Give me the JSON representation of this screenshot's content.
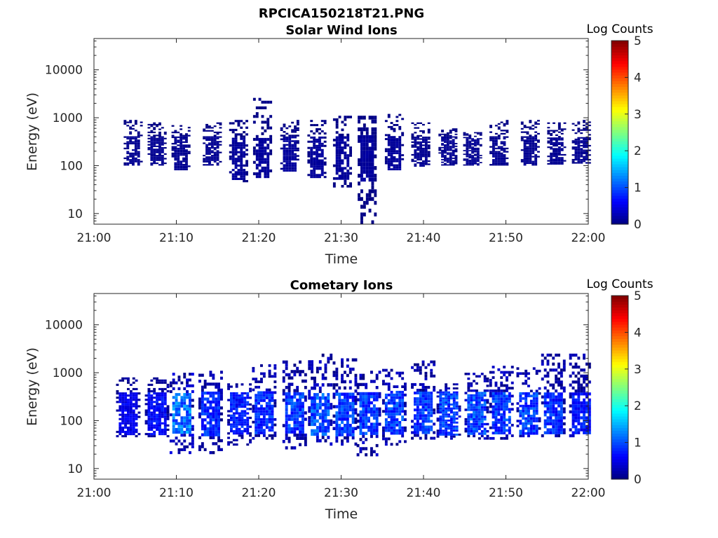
{
  "figure": {
    "title": "RPCICA150218T21.PNG"
  },
  "chart_data": [
    {
      "type": "heatmap",
      "title": "Solar Wind Ions",
      "xlabel": "Time",
      "ylabel": "Energy (eV)",
      "x_ticks": [
        "21:00",
        "21:10",
        "21:20",
        "21:30",
        "21:40",
        "21:50",
        "22:00"
      ],
      "xlim": [
        "21:00",
        "22:00"
      ],
      "y_scale": "log",
      "y_ticks": [
        10,
        100,
        1000,
        10000
      ],
      "y_tick_labels": [
        "10",
        "100",
        "1000",
        "10000"
      ],
      "ylim": [
        6,
        45000
      ],
      "colorbar": {
        "label": "Log Counts",
        "range": [
          0,
          5
        ],
        "ticks": [
          "0",
          "1",
          "2",
          "3",
          "4",
          "5"
        ],
        "colormap": "jet"
      },
      "colors": {
        "dominant": "#00008f",
        "mid": "#0030ff"
      },
      "bursts": [
        {
          "t": "21:04.6",
          "emin": 100,
          "emax": 900,
          "level": 0.1
        },
        {
          "t": "21:07.5",
          "emin": 100,
          "emax": 800,
          "level": 0.1
        },
        {
          "t": "21:10.4",
          "emin": 80,
          "emax": 700,
          "level": 0.1
        },
        {
          "t": "21:14.2",
          "emin": 100,
          "emax": 800,
          "level": 0.1
        },
        {
          "t": "21:17.4",
          "emin": 45,
          "emax": 900,
          "level": 0.15
        },
        {
          "t": "21:20.3",
          "emin": 55,
          "emax": 2600,
          "level": 0.15
        },
        {
          "t": "21:23.6",
          "emin": 75,
          "emax": 900,
          "level": 0.15
        },
        {
          "t": "21:26.9",
          "emin": 55,
          "emax": 900,
          "level": 0.15
        },
        {
          "t": "21:30.0",
          "emin": 35,
          "emax": 1100,
          "level": 0.15
        },
        {
          "t": "21:33.0",
          "emin": 6,
          "emax": 1100,
          "level": 0.15
        },
        {
          "t": "21:36.3",
          "emin": 80,
          "emax": 1200,
          "level": 0.15
        },
        {
          "t": "21:39.5",
          "emin": 95,
          "emax": 800,
          "level": 0.1
        },
        {
          "t": "21:42.8",
          "emin": 100,
          "emax": 600,
          "level": 0.1
        },
        {
          "t": "21:45.8",
          "emin": 100,
          "emax": 500,
          "level": 0.1
        },
        {
          "t": "21:49.0",
          "emin": 100,
          "emax": 900,
          "level": 0.1
        },
        {
          "t": "21:52.8",
          "emin": 100,
          "emax": 900,
          "level": 0.1
        },
        {
          "t": "21:56.0",
          "emin": 105,
          "emax": 800,
          "level": 0.1
        },
        {
          "t": "21:59.0",
          "emin": 110,
          "emax": 900,
          "level": 0.1
        }
      ]
    },
    {
      "type": "heatmap",
      "title": "Cometary Ions",
      "xlabel": "Time",
      "ylabel": "Energy (eV)",
      "x_ticks": [
        "21:00",
        "21:10",
        "21:20",
        "21:30",
        "21:40",
        "21:50",
        "22:00"
      ],
      "xlim": [
        "21:00",
        "22:00"
      ],
      "y_scale": "log",
      "y_ticks": [
        10,
        100,
        1000,
        10000
      ],
      "y_tick_labels": [
        "10",
        "100",
        "1000",
        "10000"
      ],
      "ylim": [
        6,
        45000
      ],
      "colorbar": {
        "label": "Log Counts",
        "range": [
          0,
          5
        ],
        "ticks": [
          "0",
          "1",
          "2",
          "3",
          "4",
          "5"
        ],
        "colormap": "jet"
      },
      "colors": {
        "dominant": "#00008f",
        "peak": "#1f7fff"
      },
      "bursts": [
        {
          "t": "21:04.0",
          "emin": 45,
          "emax": 800,
          "level": 0.6
        },
        {
          "t": "21:07.5",
          "emin": 45,
          "emax": 800,
          "level": 0.7
        },
        {
          "t": "21:10.5",
          "emin": 20,
          "emax": 1000,
          "level": 1.3
        },
        {
          "t": "21:14.0",
          "emin": 20,
          "emax": 1100,
          "level": 0.9
        },
        {
          "t": "21:17.5",
          "emin": 30,
          "emax": 600,
          "level": 0.8
        },
        {
          "t": "21:20.5",
          "emin": 40,
          "emax": 1500,
          "level": 0.9
        },
        {
          "t": "21:24.2",
          "emin": 25,
          "emax": 1800,
          "level": 1.0
        },
        {
          "t": "21:27.3",
          "emin": 30,
          "emax": 2500,
          "level": 1.1
        },
        {
          "t": "21:30.3",
          "emin": 30,
          "emax": 2000,
          "level": 1.0
        },
        {
          "t": "21:33.2",
          "emin": 18,
          "emax": 1100,
          "level": 1.0
        },
        {
          "t": "21:36.3",
          "emin": 30,
          "emax": 1200,
          "level": 1.0
        },
        {
          "t": "21:39.8",
          "emin": 40,
          "emax": 1800,
          "level": 1.0
        },
        {
          "t": "21:42.9",
          "emin": 40,
          "emax": 600,
          "level": 1.0
        },
        {
          "t": "21:46.3",
          "emin": 40,
          "emax": 1000,
          "level": 1.1
        },
        {
          "t": "21:49.3",
          "emin": 40,
          "emax": 1400,
          "level": 1.0
        },
        {
          "t": "21:52.6",
          "emin": 45,
          "emax": 1300,
          "level": 1.0
        },
        {
          "t": "21:55.6",
          "emin": 45,
          "emax": 2500,
          "level": 0.9
        },
        {
          "t": "21:59.0",
          "emin": 45,
          "emax": 2500,
          "level": 0.8
        }
      ]
    }
  ]
}
